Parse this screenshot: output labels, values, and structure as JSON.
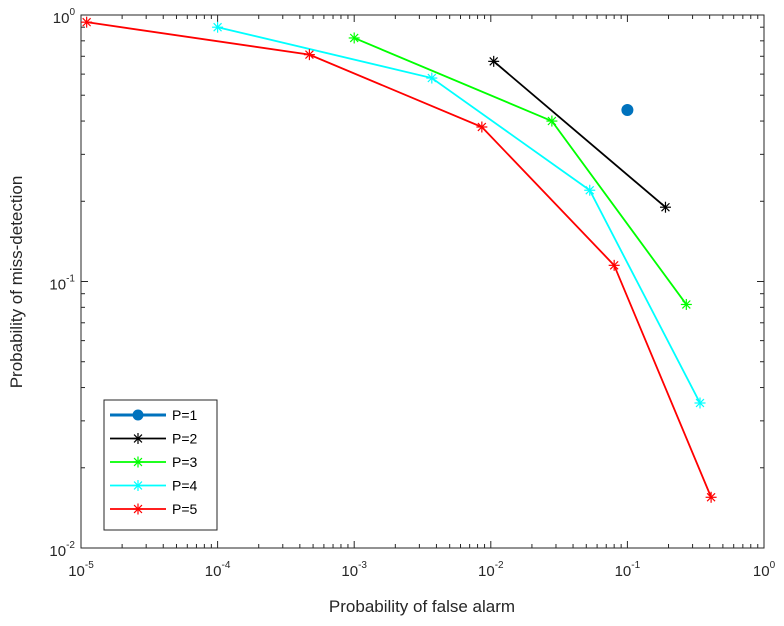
{
  "chart_data": {
    "type": "line",
    "title": "",
    "xlabel": "Probability of false alarm",
    "ylabel": "Probability of miss-detection",
    "xscale": "log",
    "yscale": "log",
    "xlim": [
      1e-05,
      1
    ],
    "ylim": [
      0.01,
      1
    ],
    "grid": false,
    "legend_position": "bottom-left",
    "x_ticks": [
      {
        "base": "10",
        "exp": "-5"
      },
      {
        "base": "10",
        "exp": "-4"
      },
      {
        "base": "10",
        "exp": "-3"
      },
      {
        "base": "10",
        "exp": "-2"
      },
      {
        "base": "10",
        "exp": "-1"
      },
      {
        "base": "10",
        "exp": "0"
      }
    ],
    "y_ticks": [
      {
        "base": "10",
        "exp": "-2"
      },
      {
        "base": "10",
        "exp": "-1"
      },
      {
        "base": "10",
        "exp": "0"
      }
    ],
    "series": [
      {
        "name": "P=1",
        "color": "#0072BD",
        "marker": "circle",
        "x": [
          0.1
        ],
        "y": [
          0.44
        ]
      },
      {
        "name": "P=2",
        "color": "#000000",
        "marker": "asterisk",
        "x": [
          0.0105,
          0.19
        ],
        "y": [
          0.67,
          0.19
        ]
      },
      {
        "name": "P=3",
        "color": "#00FF00",
        "marker": "asterisk",
        "x": [
          0.001,
          0.028,
          0.27
        ],
        "y": [
          0.82,
          0.4,
          0.082
        ]
      },
      {
        "name": "P=4",
        "color": "#00FFFF",
        "marker": "asterisk",
        "x": [
          0.0001,
          0.0037,
          0.053,
          0.34
        ],
        "y": [
          0.9,
          0.58,
          0.22,
          0.035
        ]
      },
      {
        "name": "P=5",
        "color": "#FF0000",
        "marker": "asterisk",
        "x": [
          1.1e-05,
          0.00047,
          0.0086,
          0.08,
          0.41
        ],
        "y": [
          0.94,
          0.71,
          0.38,
          0.115,
          0.0155
        ]
      }
    ]
  }
}
